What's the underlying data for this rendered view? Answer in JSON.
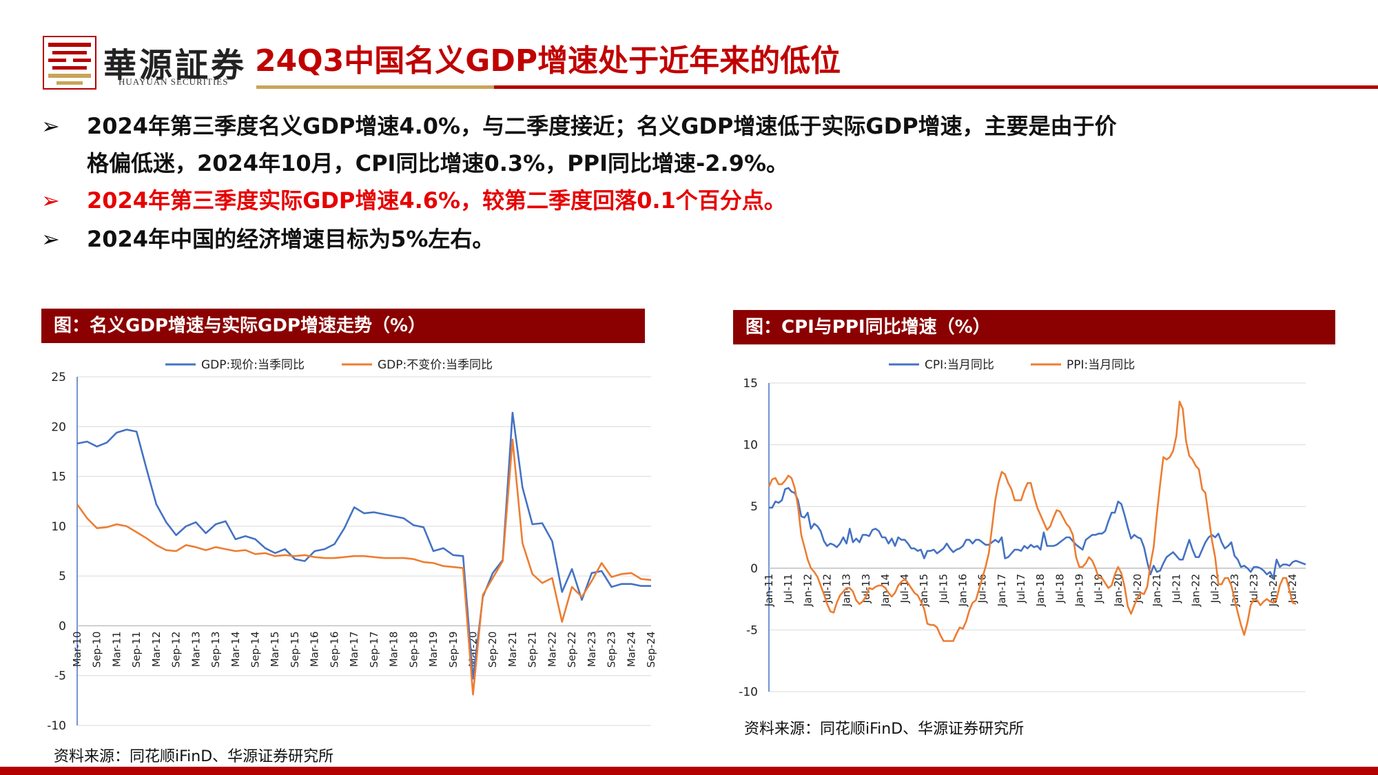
{
  "header": {
    "logo_cn": "華源証券",
    "logo_en": "HUAYUAN SECURITIES",
    "title": "24Q3中国名义GDP增速处于近年来的低位"
  },
  "bullets": [
    {
      "mark": "➢",
      "text": "2024年第三季度名义GDP增速4.0%，与二季度接近；名义GDP增速低于实际GDP增速，主要是由于价"
    },
    {
      "mark": "",
      "text": "格偏低迷，2024年10月，CPI同比增速0.3%，PPI同比增速-2.9%。"
    },
    {
      "mark": "➢",
      "text": "2024年第三季度实际GDP增速4.6%，较第二季度回落0.1个百分点。"
    },
    {
      "mark": "➢",
      "text": "2024年中国的经济增速目标为5%左右。"
    }
  ],
  "colors": {
    "blue": "#4472c4",
    "orange": "#ed7d31",
    "title_red": "#c00000",
    "bar_red": "#8b0000",
    "bullet_red": "#e60000"
  },
  "chart1": {
    "title": "图：名义GDP增速与实际GDP增速走势（%）",
    "source": "资料来源：同花顺iFinD、华源证券研究所"
  },
  "chart2": {
    "title": "图：CPI与PPI同比增速（%）",
    "source": "资料来源：同花顺iFinD、华源证券研究所"
  },
  "chart_data": [
    {
      "type": "line",
      "title": "",
      "ylim": [
        -10,
        25
      ],
      "yticks": [
        -10,
        -5,
        0,
        5,
        10,
        15,
        20,
        25
      ],
      "grid": true,
      "legend_position": "top-center",
      "x": [
        "Mar-10",
        "Jun-10",
        "Sep-10",
        "Dec-10",
        "Mar-11",
        "Jun-11",
        "Sep-11",
        "Dec-11",
        "Mar-12",
        "Jun-12",
        "Sep-12",
        "Dec-12",
        "Mar-13",
        "Jun-13",
        "Sep-13",
        "Dec-13",
        "Mar-14",
        "Jun-14",
        "Sep-14",
        "Dec-14",
        "Mar-15",
        "Jun-15",
        "Sep-15",
        "Dec-15",
        "Mar-16",
        "Jun-16",
        "Sep-16",
        "Dec-16",
        "Mar-17",
        "Jun-17",
        "Sep-17",
        "Dec-17",
        "Mar-18",
        "Jun-18",
        "Sep-18",
        "Dec-18",
        "Mar-19",
        "Jun-19",
        "Sep-19",
        "Dec-19",
        "Mar-20",
        "Jun-20",
        "Sep-20",
        "Dec-20",
        "Mar-21",
        "Jun-21",
        "Sep-21",
        "Dec-21",
        "Mar-22",
        "Jun-22",
        "Sep-22",
        "Dec-22",
        "Mar-23",
        "Jun-23",
        "Sep-23",
        "Dec-23",
        "Mar-24",
        "Jun-24",
        "Sep-24"
      ],
      "xtick_labels": [
        "Mar-10",
        "Sep-10",
        "Mar-11",
        "Sep-11",
        "Mar-12",
        "Sep-12",
        "Mar-13",
        "Sep-13",
        "Mar-14",
        "Sep-14",
        "Mar-15",
        "Sep-15",
        "Mar-16",
        "Sep-16",
        "Mar-17",
        "Sep-17",
        "Mar-18",
        "Sep-18",
        "Mar-19",
        "Sep-19",
        "Mar-20",
        "Sep-20",
        "Mar-21",
        "Sep-21",
        "Mar-22",
        "Sep-22",
        "Mar-23",
        "Sep-23",
        "Mar-24",
        "Sep-24"
      ],
      "series": [
        {
          "name": "GDP:现价:当季同比",
          "color": "#4472c4",
          "values": [
            18.3,
            18.5,
            18.0,
            18.4,
            19.4,
            19.7,
            19.5,
            15.8,
            12.2,
            10.4,
            9.1,
            10.0,
            10.4,
            9.3,
            10.2,
            10.5,
            8.7,
            9.0,
            8.7,
            7.8,
            7.3,
            7.7,
            6.7,
            6.5,
            7.5,
            7.7,
            8.2,
            9.8,
            11.9,
            11.3,
            11.4,
            11.2,
            11.0,
            10.8,
            10.1,
            9.9,
            7.5,
            7.8,
            7.1,
            7.0,
            -5.3,
            2.9,
            5.3,
            6.6,
            21.4,
            13.9,
            10.2,
            10.3,
            8.5,
            3.4,
            5.7,
            2.6,
            5.3,
            5.5,
            3.9,
            4.2,
            4.2,
            4.0,
            4.0
          ]
        },
        {
          "name": "GDP:不变价:当季同比",
          "color": "#ed7d31",
          "values": [
            12.2,
            10.8,
            9.8,
            9.9,
            10.2,
            10.0,
            9.4,
            8.8,
            8.1,
            7.6,
            7.5,
            8.1,
            7.9,
            7.6,
            7.9,
            7.7,
            7.5,
            7.6,
            7.2,
            7.3,
            7.0,
            7.1,
            7.0,
            7.1,
            6.9,
            6.8,
            6.8,
            6.9,
            7.0,
            7.0,
            6.9,
            6.8,
            6.8,
            6.8,
            6.7,
            6.4,
            6.3,
            6.0,
            5.9,
            5.8,
            -6.9,
            3.1,
            4.8,
            6.5,
            18.7,
            8.3,
            5.2,
            4.3,
            4.8,
            0.4,
            3.9,
            2.9,
            4.5,
            6.3,
            4.9,
            5.2,
            5.3,
            4.7,
            4.6
          ]
        }
      ]
    },
    {
      "type": "line",
      "title": "",
      "ylim": [
        -10,
        15
      ],
      "yticks": [
        -10,
        -5,
        0,
        5,
        10,
        15
      ],
      "grid": true,
      "legend_position": "top-center",
      "x_range": [
        "Jan-11",
        "Oct-24"
      ],
      "xtick_labels": [
        "Jan-11",
        "Jul-11",
        "Jan-12",
        "Jul-12",
        "Jan-13",
        "Jul-13",
        "Jan-14",
        "Jul-14",
        "Jan-15",
        "Jul-15",
        "Jan-16",
        "Jul-16",
        "Jan-17",
        "Jul-17",
        "Jan-18",
        "Jul-18",
        "Jan-19",
        "Jul-19",
        "Jan-20",
        "Jul-20",
        "Jan-21",
        "Jul-21",
        "Jan-22",
        "Jul-22",
        "Jan-23",
        "Jul-23",
        "Jan-24",
        "Jul-24"
      ],
      "series": [
        {
          "name": "CPI:当月同比",
          "color": "#4472c4",
          "values": [
            4.9,
            4.9,
            5.4,
            5.3,
            5.5,
            6.4,
            6.5,
            6.2,
            6.1,
            5.5,
            4.2,
            4.1,
            4.5,
            3.2,
            3.6,
            3.4,
            3.0,
            2.2,
            1.8,
            2.0,
            1.9,
            1.7,
            2.0,
            2.5,
            2.0,
            3.2,
            2.1,
            2.4,
            2.1,
            2.7,
            2.7,
            2.6,
            3.1,
            3.2,
            3.0,
            2.5,
            2.5,
            2.0,
            2.4,
            1.8,
            2.5,
            2.3,
            2.3,
            2.0,
            1.6,
            1.6,
            1.4,
            1.5,
            0.8,
            1.4,
            1.4,
            1.5,
            1.2,
            1.4,
            1.6,
            2.0,
            1.6,
            1.3,
            1.5,
            1.6,
            1.8,
            2.3,
            2.3,
            2.0,
            2.3,
            2.3,
            2.1,
            1.9,
            1.9,
            2.1,
            2.3,
            2.1,
            2.5,
            0.8,
            0.9,
            1.2,
            1.5,
            1.5,
            1.4,
            1.8,
            1.6,
            1.9,
            1.7,
            1.8,
            1.5,
            2.9,
            1.8,
            1.8,
            1.8,
            1.9,
            2.1,
            2.3,
            2.5,
            2.5,
            2.2,
            1.9,
            1.7,
            1.5,
            2.3,
            2.5,
            2.7,
            2.7,
            2.8,
            2.8,
            3.0,
            3.8,
            4.5,
            4.5,
            5.4,
            5.2,
            4.3,
            3.3,
            2.4,
            2.7,
            2.5,
            2.4,
            1.7,
            0.5,
            -0.5,
            0.2,
            -0.3,
            -0.2,
            0.4,
            0.9,
            1.1,
            1.3,
            1.0,
            0.7,
            0.7,
            1.5,
            2.3,
            1.5,
            0.9,
            0.9,
            1.5,
            2.1,
            2.5,
            2.7,
            2.5,
            2.8,
            2.1,
            1.6,
            1.8,
            2.1,
            1.0,
            0.7,
            0.1,
            0.2,
            0.0,
            -0.3,
            0.1,
            0.1,
            0.0,
            -0.2,
            -0.5,
            -0.3,
            -0.8,
            0.7,
            0.1,
            0.3,
            0.3,
            0.2,
            0.5,
            0.6,
            0.5,
            0.4,
            0.3
          ]
        },
        {
          "name": "PPI:当月同比",
          "color": "#ed7d31",
          "values": [
            6.6,
            7.2,
            7.3,
            6.8,
            6.8,
            7.1,
            7.5,
            7.3,
            6.5,
            5.0,
            2.7,
            1.7,
            0.7,
            0.0,
            -0.3,
            -0.7,
            -1.4,
            -2.1,
            -2.9,
            -3.5,
            -3.6,
            -2.8,
            -2.2,
            -1.9,
            -1.6,
            -1.6,
            -1.9,
            -2.6,
            -2.9,
            -2.7,
            -2.3,
            -1.6,
            -1.7,
            -1.5,
            -1.4,
            -1.4,
            -1.6,
            -2.0,
            -2.3,
            -2.0,
            -1.4,
            -1.1,
            -0.9,
            -1.2,
            -1.6,
            -2.0,
            -2.2,
            -2.7,
            -3.3,
            -4.5,
            -4.6,
            -4.6,
            -4.8,
            -5.4,
            -5.9,
            -5.9,
            -5.9,
            -5.9,
            -5.3,
            -4.8,
            -4.9,
            -4.3,
            -3.4,
            -2.8,
            -2.6,
            -1.7,
            -0.8,
            0.1,
            1.2,
            3.3,
            5.5,
            6.9,
            7.8,
            7.6,
            6.9,
            6.4,
            5.5,
            5.5,
            5.5,
            6.3,
            6.9,
            6.9,
            5.8,
            4.9,
            4.3,
            3.7,
            3.1,
            3.4,
            4.1,
            4.7,
            4.6,
            4.1,
            3.6,
            3.3,
            2.7,
            0.9,
            0.1,
            0.1,
            0.4,
            0.9,
            0.6,
            0.0,
            -0.8,
            -0.8,
            -1.2,
            -1.6,
            -1.4,
            -0.5,
            0.1,
            -0.4,
            -1.5,
            -3.1,
            -3.7,
            -3.0,
            -2.4,
            -2.0,
            -2.1,
            -1.5,
            0.3,
            1.7,
            4.4,
            6.8,
            9.0,
            8.8,
            9.0,
            9.5,
            10.7,
            13.5,
            12.9,
            10.3,
            9.1,
            8.8,
            8.3,
            8.0,
            6.4,
            6.1,
            4.2,
            2.3,
            0.9,
            -1.3,
            -1.3,
            -0.8,
            -0.8,
            -1.4,
            -2.5,
            -3.6,
            -4.6,
            -5.4,
            -4.4,
            -3.0,
            -2.5,
            -2.6,
            -3.0,
            -2.7,
            -2.5,
            -2.7,
            -2.8,
            -2.5,
            -1.4,
            -0.8,
            -0.8,
            -1.8,
            -2.8,
            -2.9
          ]
        }
      ]
    }
  ]
}
